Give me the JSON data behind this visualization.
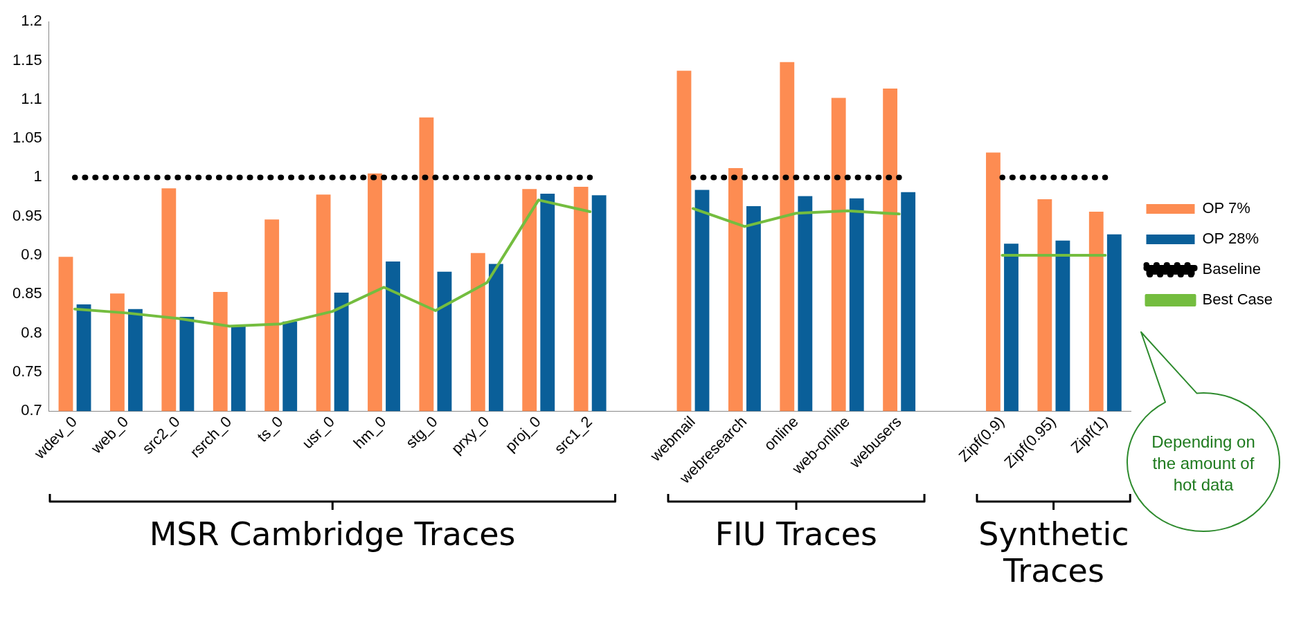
{
  "chart_data": {
    "type": "bar",
    "categories": [
      "wdev_0",
      "web_0",
      "src2_0",
      "rsrch_0",
      "ts_0",
      "usr_0",
      "hm_0",
      "stg_0",
      "prxy_0",
      "proj_0",
      "src1_2",
      null,
      "webmail",
      "webresearch",
      "online",
      "web-online",
      "webusers",
      null,
      "Zipf(0.9)",
      "Zipf(0.95)",
      "Zipf(1)"
    ],
    "series": [
      {
        "name": "OP 7%",
        "color": "#fd8c52",
        "values": [
          0.898,
          0.851,
          0.986,
          0.853,
          0.946,
          0.978,
          1.005,
          1.077,
          0.903,
          0.985,
          0.988,
          null,
          1.137,
          1.012,
          1.148,
          1.102,
          1.114,
          null,
          1.032,
          0.972,
          0.956
        ]
      },
      {
        "name": "OP 28%",
        "color": "#0a5f99",
        "values": [
          0.837,
          0.831,
          0.821,
          0.81,
          0.815,
          0.852,
          0.892,
          0.879,
          0.889,
          0.979,
          0.977,
          null,
          0.984,
          0.963,
          0.976,
          0.973,
          0.981,
          null,
          0.915,
          0.919,
          0.927
        ]
      },
      {
        "name": "Baseline",
        "type": "line",
        "color": "#000000",
        "line_style": "dotted",
        "values": [
          1,
          1,
          1,
          1,
          1,
          1,
          1,
          1,
          1,
          1,
          1,
          null,
          1,
          1,
          1,
          1,
          1,
          null,
          1,
          1,
          1
        ]
      },
      {
        "name": "Best Case",
        "type": "line",
        "color": "#74bd3f",
        "line_style": "solid",
        "values": [
          0.831,
          0.826,
          0.819,
          0.809,
          0.812,
          0.828,
          0.859,
          0.829,
          0.865,
          0.971,
          0.956,
          null,
          0.96,
          0.937,
          0.954,
          0.957,
          0.953,
          null,
          0.9,
          0.9,
          0.9
        ]
      }
    ],
    "ylim": [
      0.7,
      1.2
    ],
    "yticks": [
      0.7,
      0.75,
      0.8,
      0.85,
      0.9,
      0.95,
      1,
      1.05,
      1.1,
      1.15,
      1.2
    ],
    "grid": false,
    "legend": "right",
    "marker": "none",
    "annotations": [
      "MSR Cambridge Traces",
      "FIU Traces",
      "Synthetic Traces",
      "Depending on the amount of hot data"
    ]
  }
}
